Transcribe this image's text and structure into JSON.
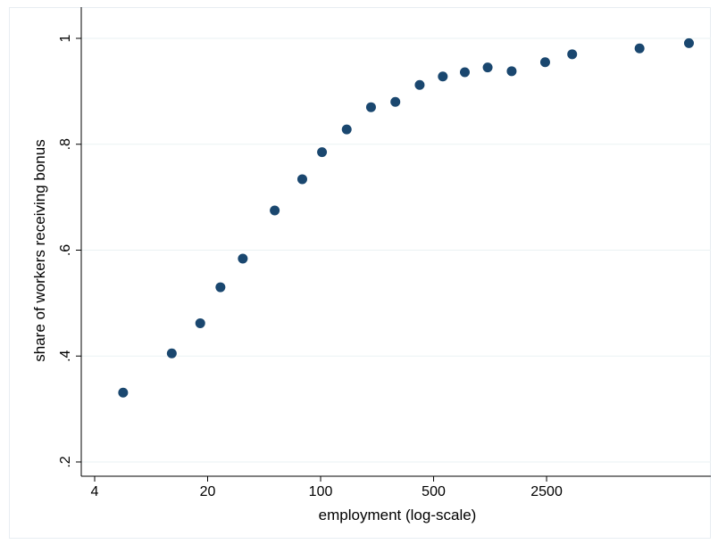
{
  "chart_data": {
    "type": "scatter",
    "title": "",
    "xlabel": "employment (log-scale)",
    "ylabel": "share of workers receiving bonus",
    "x_scale": "log",
    "xlim": [
      4,
      22000
    ],
    "ylim": [
      0.2,
      1.0
    ],
    "x_ticks": [
      4,
      20,
      100,
      500,
      2500
    ],
    "x_tick_labels": [
      "4",
      "20",
      "100",
      "500",
      "2500"
    ],
    "y_ticks": [
      0.2,
      0.4,
      0.6,
      0.8,
      1.0
    ],
    "y_tick_labels": [
      ".2",
      ".4",
      ".6",
      ".8",
      "1"
    ],
    "grid": true,
    "legend": "none",
    "marker_color": "#1a476f",
    "grid_color": "#eaf2f3",
    "points": [
      {
        "x": 6,
        "y": 0.331
      },
      {
        "x": 12,
        "y": 0.405
      },
      {
        "x": 18,
        "y": 0.462
      },
      {
        "x": 24,
        "y": 0.53
      },
      {
        "x": 33,
        "y": 0.584
      },
      {
        "x": 52,
        "y": 0.675
      },
      {
        "x": 77,
        "y": 0.734
      },
      {
        "x": 102,
        "y": 0.785
      },
      {
        "x": 145,
        "y": 0.828
      },
      {
        "x": 205,
        "y": 0.87
      },
      {
        "x": 290,
        "y": 0.88
      },
      {
        "x": 410,
        "y": 0.912
      },
      {
        "x": 570,
        "y": 0.928
      },
      {
        "x": 780,
        "y": 0.936
      },
      {
        "x": 1080,
        "y": 0.945
      },
      {
        "x": 1520,
        "y": 0.938
      },
      {
        "x": 2450,
        "y": 0.955
      },
      {
        "x": 3600,
        "y": 0.97
      },
      {
        "x": 9400,
        "y": 0.981
      },
      {
        "x": 19000,
        "y": 0.991
      }
    ]
  }
}
